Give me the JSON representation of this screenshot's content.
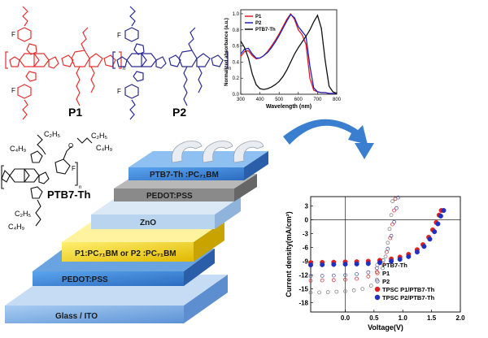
{
  "molecules": {
    "p1_label": "P1",
    "p2_label": "P2",
    "ptb7_label": "PTB7-Th",
    "atoms": {
      "f": "F",
      "s": "S",
      "n": "N",
      "o": "O",
      "sub_n": "n",
      "c2h5": "C₂H₅",
      "c4h9": "C₄H₉"
    },
    "p1_color": "#e53030",
    "p2_color": "#2a2a90",
    "ptb7_color": "#111111"
  },
  "device": {
    "layers": [
      {
        "name": "ptb7-layer",
        "label": "PTB7-Th :PC₇₁BM",
        "color": "#4a90e0"
      },
      {
        "name": "pedot-top-layer",
        "label": "PEDOT:PSS",
        "color": "#8a8a8a"
      },
      {
        "name": "zno-layer",
        "label": "ZnO",
        "color": "#b8d4ee"
      },
      {
        "name": "p1p2-layer",
        "label": "P1:PC₇₁BM or P2 :PC₇₁BM",
        "color": "#f2d000"
      },
      {
        "name": "pedot-bottom-layer",
        "label": "PEDOT:PSS",
        "color": "#3a7ec0"
      },
      {
        "name": "glass-layer",
        "label": "Glass / ITO",
        "color": "#90b8e8"
      }
    ]
  },
  "chart_data": [
    {
      "type": "line",
      "xlabel": "Wavelength (nm)",
      "ylabel": "Normalized absorbance (a.u.)",
      "xlim": [
        300,
        800
      ],
      "ylim": [
        0.0,
        1.05
      ],
      "xticks": [
        "300",
        "400",
        "500",
        "600",
        "700",
        "800"
      ],
      "yticks": [
        "0.0",
        "0.2",
        "0.4",
        "0.6",
        "0.8",
        "1.0"
      ],
      "legend_position": "top-left",
      "x": [
        300,
        320,
        340,
        360,
        380,
        400,
        420,
        440,
        460,
        480,
        500,
        520,
        540,
        560,
        580,
        600,
        620,
        640,
        660,
        680,
        700,
        720,
        740,
        760,
        780,
        800
      ],
      "series": [
        {
          "name": "P1",
          "color": "#e02020",
          "values": [
            0.47,
            0.53,
            0.54,
            0.48,
            0.44,
            0.45,
            0.48,
            0.53,
            0.6,
            0.67,
            0.75,
            0.84,
            0.93,
            1.0,
            0.93,
            0.8,
            0.74,
            0.62,
            0.2,
            0.05,
            0.03,
            0.02,
            0.02,
            0.01,
            0.01,
            0.01
          ]
        },
        {
          "name": "P2",
          "color": "#2020c0",
          "values": [
            0.5,
            0.56,
            0.57,
            0.5,
            0.45,
            0.45,
            0.48,
            0.52,
            0.58,
            0.65,
            0.73,
            0.82,
            0.91,
            0.99,
            0.95,
            0.84,
            0.78,
            0.72,
            0.35,
            0.08,
            0.03,
            0.02,
            0.02,
            0.01,
            0.01,
            0.01
          ]
        },
        {
          "name": "PTB7-Th",
          "color": "#111111",
          "values": [
            0.66,
            0.58,
            0.45,
            0.25,
            0.12,
            0.07,
            0.06,
            0.07,
            0.09,
            0.12,
            0.16,
            0.22,
            0.3,
            0.4,
            0.5,
            0.58,
            0.65,
            0.72,
            0.8,
            0.9,
            0.98,
            0.82,
            0.42,
            0.1,
            0.03,
            0.01
          ]
        }
      ]
    },
    {
      "type": "scatter",
      "xlabel": "Voltage(V)",
      "ylabel": "Current density(mA/cm²)",
      "xlim": [
        -0.6,
        2.0
      ],
      "ylim": [
        -20,
        5
      ],
      "xticks": [
        "0.0",
        "0.5",
        "1.0",
        "1.5",
        "2.0"
      ],
      "yticks": [
        "-18",
        "-15",
        "-12",
        "-9",
        "-6",
        "-3",
        "0",
        "3"
      ],
      "legend_position": "bottom-right",
      "series": [
        {
          "name": "PTB7-Th",
          "marker": "open-circle",
          "color": "#888888",
          "x": [
            -0.6,
            -0.45,
            -0.3,
            -0.15,
            0.0,
            0.15,
            0.3,
            0.45,
            0.55,
            0.65,
            0.7,
            0.74,
            0.77,
            0.8,
            0.82
          ],
          "y": [
            -15.8,
            -15.75,
            -15.7,
            -15.6,
            -15.5,
            -15.3,
            -15.0,
            -14.3,
            -13.0,
            -10.5,
            -8.0,
            -5.0,
            -2.0,
            1.0,
            4.0
          ]
        },
        {
          "name": "P1",
          "marker": "open-circle",
          "color": "#d04040",
          "x": [
            -0.6,
            -0.4,
            -0.2,
            0.0,
            0.2,
            0.4,
            0.55,
            0.65,
            0.72,
            0.78,
            0.82,
            0.85,
            0.87
          ],
          "y": [
            -13.2,
            -13.15,
            -13.1,
            -13.0,
            -12.8,
            -12.3,
            -11.3,
            -9.5,
            -7.0,
            -4.0,
            -1.0,
            2.0,
            4.5
          ]
        },
        {
          "name": "P2",
          "marker": "open-circle",
          "color": "#6060a0",
          "x": [
            -0.6,
            -0.4,
            -0.2,
            0.0,
            0.2,
            0.4,
            0.55,
            0.66,
            0.74,
            0.8,
            0.85,
            0.89,
            0.92
          ],
          "y": [
            -12.2,
            -12.15,
            -12.1,
            -12.0,
            -11.8,
            -11.4,
            -10.5,
            -8.8,
            -6.3,
            -3.5,
            -0.5,
            2.5,
            4.8
          ]
        },
        {
          "name": "TPSC P1/PTB7-Th",
          "marker": "filled-circle",
          "color": "#e02020",
          "x": [
            -0.6,
            -0.4,
            -0.2,
            0.0,
            0.2,
            0.4,
            0.6,
            0.8,
            0.95,
            1.1,
            1.25,
            1.35,
            1.45,
            1.52,
            1.58,
            1.63,
            1.67
          ],
          "y": [
            -9.3,
            -9.25,
            -9.2,
            -9.15,
            -9.1,
            -9.0,
            -8.8,
            -8.5,
            -8.1,
            -7.5,
            -6.5,
            -5.4,
            -3.8,
            -2.2,
            -0.6,
            1.0,
            2.0
          ]
        },
        {
          "name": "TPSC P2/PTB7-Th",
          "marker": "filled-circle",
          "color": "#2030c0",
          "x": [
            -0.6,
            -0.4,
            -0.2,
            0.0,
            0.2,
            0.4,
            0.6,
            0.8,
            0.95,
            1.1,
            1.25,
            1.37,
            1.47,
            1.55,
            1.61,
            1.66,
            1.71
          ],
          "y": [
            -9.8,
            -9.75,
            -9.7,
            -9.65,
            -9.6,
            -9.5,
            -9.3,
            -9.0,
            -8.6,
            -8.0,
            -7.0,
            -5.8,
            -4.2,
            -2.6,
            -0.9,
            0.8,
            2.0
          ]
        }
      ]
    }
  ]
}
